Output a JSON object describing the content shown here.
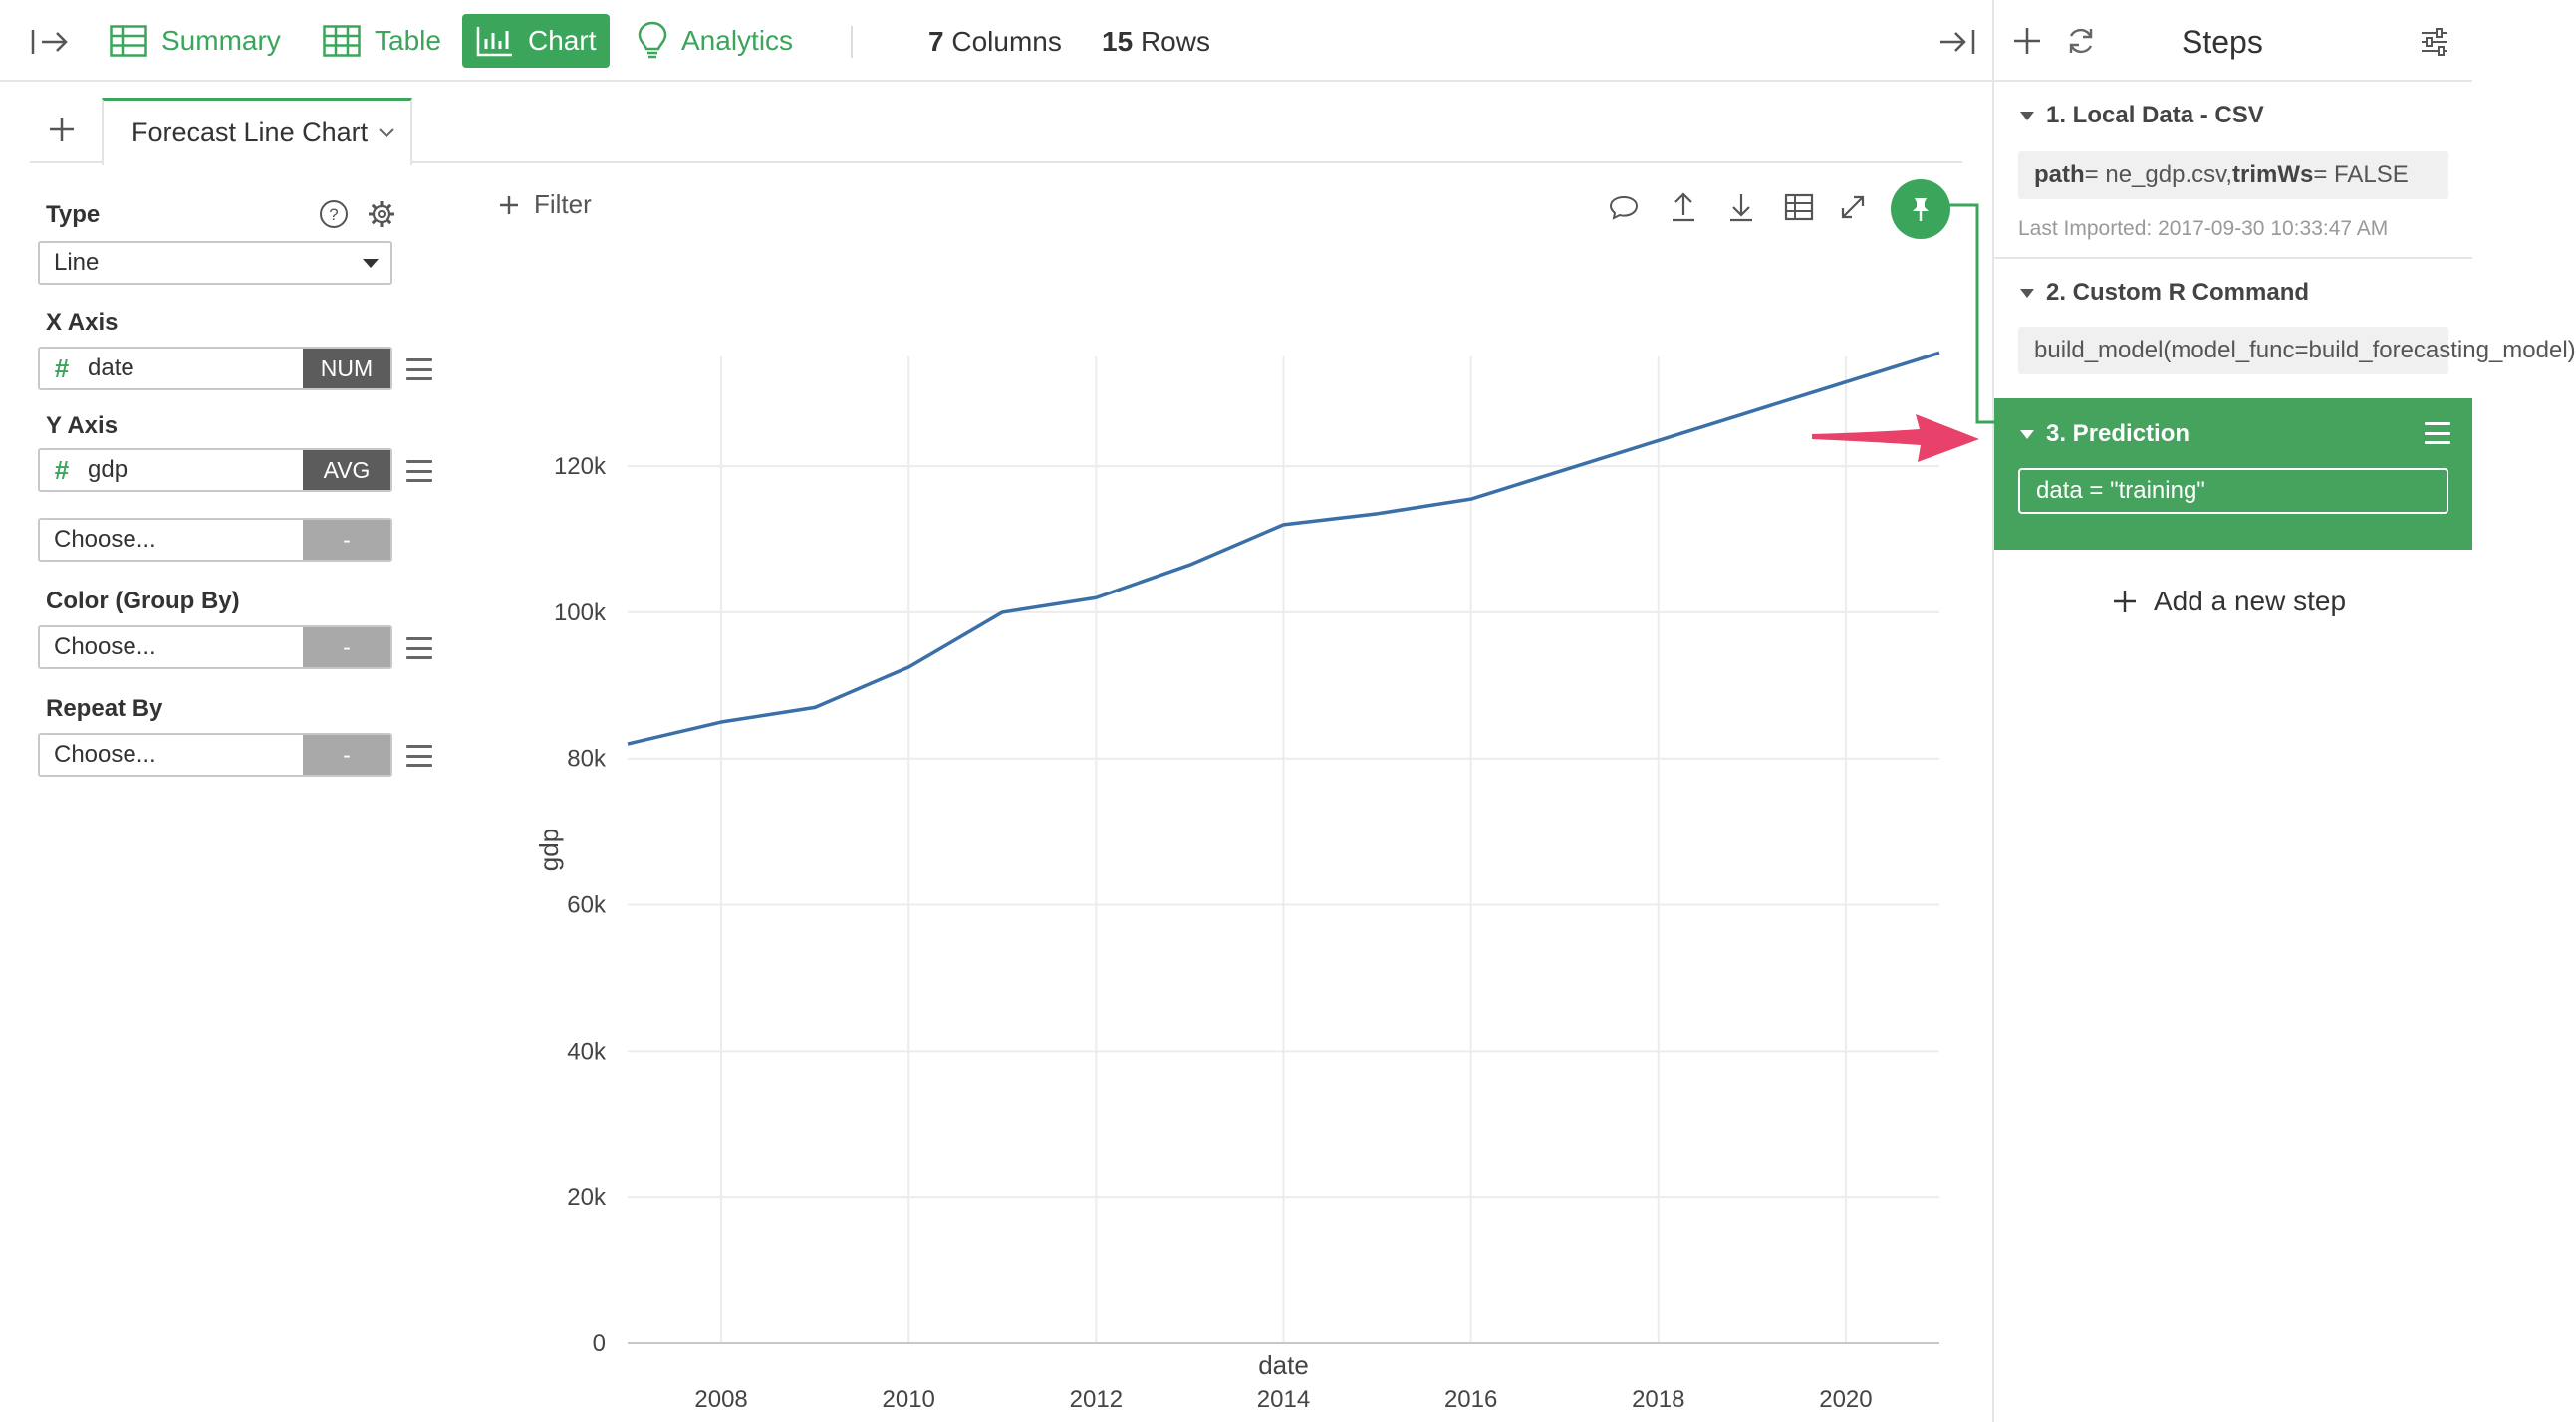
{
  "topbar": {
    "nav": [
      {
        "label": "Summary",
        "icon": "summary-icon",
        "active": false
      },
      {
        "label": "Table",
        "icon": "table-icon",
        "active": false
      },
      {
        "label": "Chart",
        "icon": "chart-icon",
        "active": true
      },
      {
        "label": "Analytics",
        "icon": "lightbulb-icon",
        "active": false
      }
    ],
    "columns_count": "7",
    "columns_label": "Columns",
    "rows_count": "15",
    "rows_label": "Rows"
  },
  "tabs": {
    "active_tab": "Forecast Line Chart"
  },
  "config": {
    "type_label": "Type",
    "type_value": "Line",
    "x_axis_label": "X Axis",
    "x_field": {
      "hash": "#",
      "name": "date",
      "agg": "NUM"
    },
    "y_axis_label": "Y Axis",
    "y_field": {
      "hash": "#",
      "name": "gdp",
      "agg": "AVG"
    },
    "y_extra": {
      "name": "Choose...",
      "agg": "-"
    },
    "color_label": "Color (Group By)",
    "color_field": {
      "name": "Choose...",
      "agg": "-"
    },
    "repeat_label": "Repeat By",
    "repeat_field": {
      "name": "Choose...",
      "agg": "-"
    }
  },
  "toolbar": {
    "filter_label": "Filter"
  },
  "chart_data": {
    "type": "line",
    "xlabel": "date",
    "ylabel": "gdp",
    "xlim": [
      2007,
      2021
    ],
    "ylim": [
      0,
      135000
    ],
    "x_ticks": [
      2008,
      2010,
      2012,
      2014,
      2016,
      2018,
      2020
    ],
    "y_ticks": [
      0,
      20000,
      40000,
      60000,
      80000,
      100000,
      120000
    ],
    "y_tick_labels": [
      "0",
      "20k",
      "40k",
      "60k",
      "80k",
      "100k",
      "120k"
    ],
    "grid": true,
    "line_color": "#3b6fa8",
    "x": [
      2007,
      2008,
      2009,
      2010,
      2011,
      2012,
      2013,
      2014,
      2015,
      2016,
      2017,
      2018,
      2019,
      2020,
      2021
    ],
    "values": [
      82000,
      85000,
      87000,
      92500,
      100000,
      102000,
      106500,
      112000,
      113500,
      115500,
      119500,
      123500,
      127500,
      131500,
      135500
    ]
  },
  "steps": {
    "title": "Steps",
    "items": [
      {
        "number_title": "1. Local Data - CSV",
        "param1_key": "path",
        "param1_val": " = ne_gdp.csv, ",
        "param2_key": "trimWs",
        "param2_val": " = FALSE",
        "meta": "Last Imported: 2017-09-30 10:33:47 AM"
      },
      {
        "number_title": "2. Custom R Command",
        "body": "build_model(model_func=build_forecasting_model)"
      },
      {
        "number_title": "3. Prediction",
        "body": "data = \"training\""
      }
    ],
    "add_label": "Add a new step",
    "accent": "#46a35e"
  },
  "annotation": {
    "arrow_color": "#e8426a"
  }
}
